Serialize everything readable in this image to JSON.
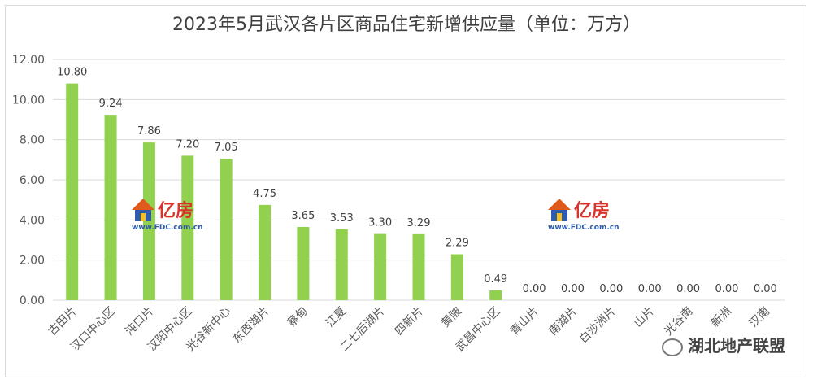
{
  "chart_data": {
    "type": "bar",
    "title": "2023年5月武汉各片区商品住宅新增供应量（单位：万方）",
    "categories": [
      "古田片",
      "汉口中心区",
      "沌口片",
      "汉阳中心区",
      "光谷新中心",
      "东西湖片",
      "蔡甸",
      "江夏",
      "二七后湖片",
      "四新片",
      "黄陂",
      "武昌中心区",
      "青山片",
      "南湖片",
      "白沙洲片",
      "山片",
      "光谷南",
      "新洲",
      "汉南"
    ],
    "values": [
      10.8,
      9.24,
      7.86,
      7.2,
      7.05,
      4.75,
      3.65,
      3.53,
      3.3,
      3.29,
      2.29,
      0.49,
      0.0,
      0.0,
      0.0,
      0.0,
      0.0,
      0.0,
      0.0
    ],
    "value_labels": [
      "10.80",
      "9.24",
      "7.86",
      "7.20",
      "7.05",
      "4.75",
      "3.65",
      "3.53",
      "3.30",
      "3.29",
      "2.29",
      "0.49",
      "0.00",
      "0.00",
      "0.00",
      "0.00",
      "0.00",
      "0.00",
      "0.00"
    ],
    "y_ticks": [
      "0.00",
      "2.00",
      "4.00",
      "6.00",
      "8.00",
      "10.00",
      "12.00"
    ],
    "ylim": [
      0,
      12
    ],
    "grid": true,
    "bar_color": "#92d050",
    "xlabel": "",
    "ylabel": ""
  },
  "watermark": {
    "brand": "亿房",
    "url": "www.FDC.com.cn"
  },
  "footer": {
    "brand": "湖北地产联盟"
  }
}
